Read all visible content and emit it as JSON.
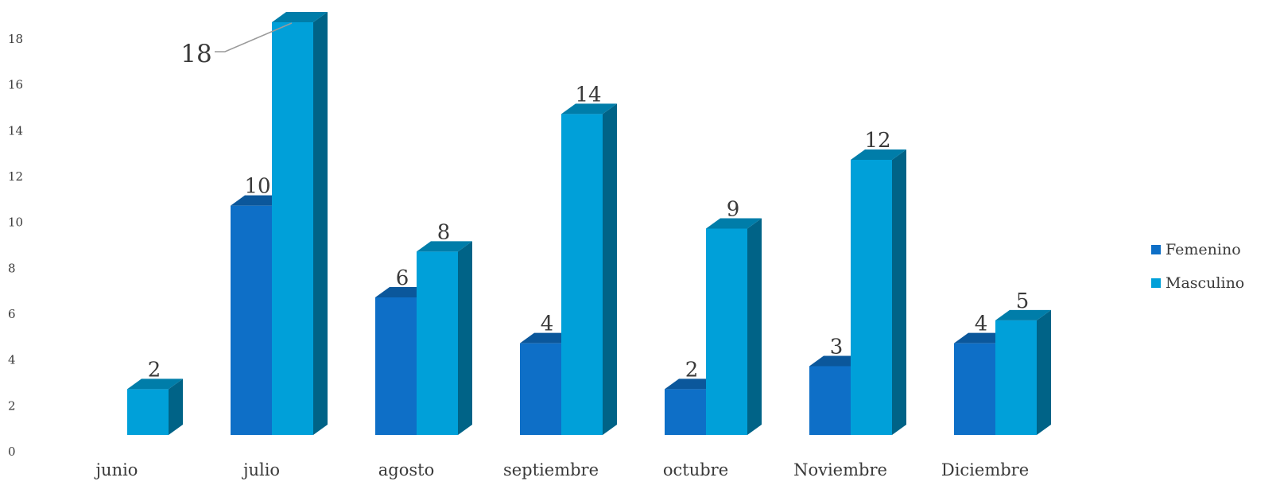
{
  "chart_data": {
    "type": "bar",
    "categories": [
      "junio",
      "julio",
      "agosto",
      "septiembre",
      "octubre",
      "Noviembre",
      "Diciembre"
    ],
    "series": [
      {
        "name": "Femenino",
        "values": [
          0,
          10,
          6,
          4,
          2,
          3,
          4
        ],
        "color": "#0e6fc7"
      },
      {
        "name": "Masculino",
        "values": [
          2,
          18,
          8,
          14,
          9,
          12,
          5
        ],
        "color": "#00a0d9"
      }
    ],
    "data_labels": [
      [
        null,
        "10",
        "6",
        "4",
        "2",
        "3",
        "4"
      ],
      [
        "2",
        "18",
        "8",
        "14",
        "9",
        "12",
        "5"
      ]
    ],
    "yticks": [
      "0",
      "2",
      "4",
      "6",
      "8",
      "10",
      "12",
      "14",
      "16",
      "18"
    ],
    "ylim": [
      0,
      18
    ],
    "legend_position": "right",
    "grid": false
  }
}
